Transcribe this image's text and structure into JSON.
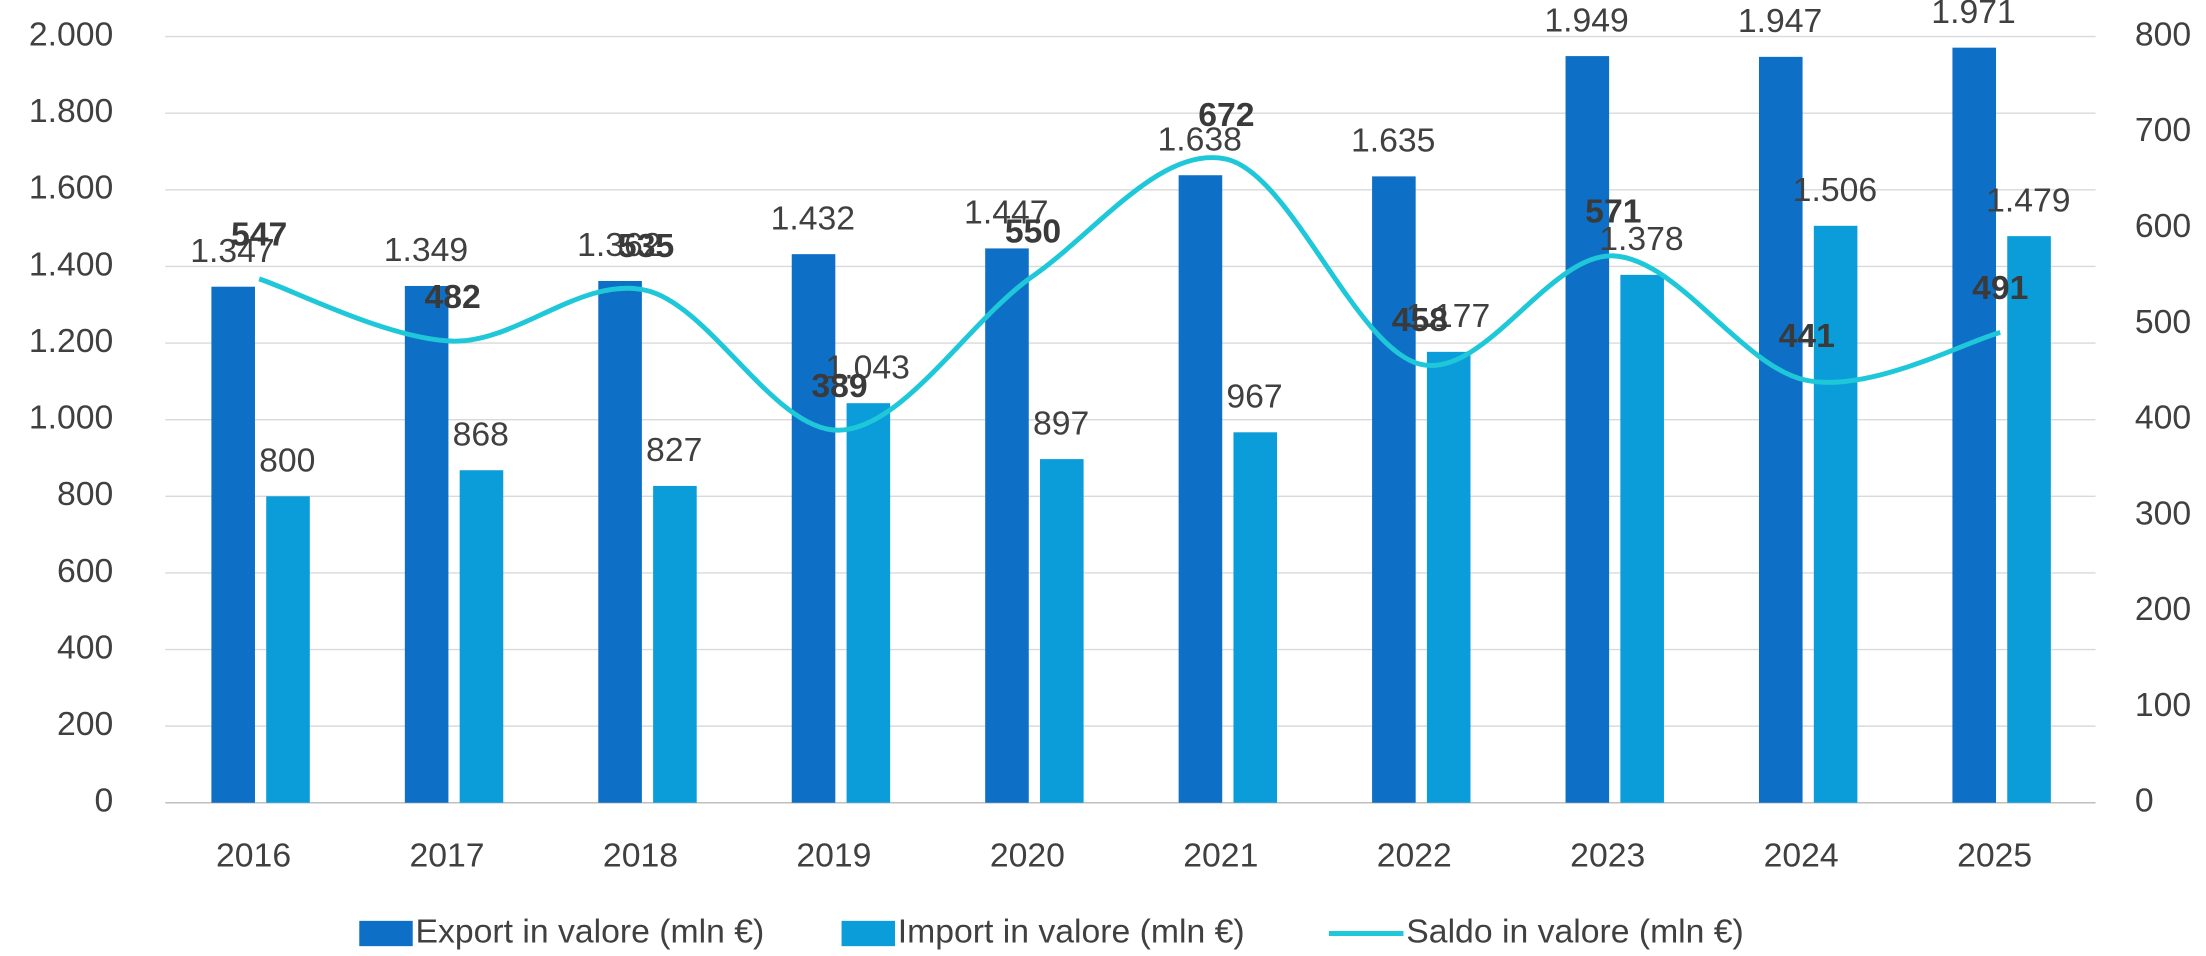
{
  "chart_data": {
    "type": "bar_line",
    "categories": [
      "2016",
      "2017",
      "2018",
      "2019",
      "2020",
      "2021",
      "2022",
      "2023",
      "2024",
      "2025"
    ],
    "series": [
      {
        "name": "Export in valore (mln €)",
        "color": "#0e6fc6",
        "type": "bar",
        "values": [
          1347,
          1349,
          1362,
          1432,
          1447,
          1638,
          1635,
          1949,
          1947,
          1971
        ],
        "value_labels": [
          "1.347",
          "1.349",
          "1.362",
          "1.432",
          "1.447",
          "1.638",
          "1.635",
          "1.949",
          "1.947",
          "1.971"
        ]
      },
      {
        "name": "Import in valore (mln €)",
        "color": "#0b9dd9",
        "type": "bar",
        "values": [
          800,
          868,
          827,
          1043,
          897,
          967,
          1177,
          1378,
          1506,
          1479
        ],
        "value_labels": [
          "800",
          "868",
          "827",
          "1.043",
          "897",
          "967",
          "1.177",
          "1.378",
          "1.506",
          "1.479"
        ]
      },
      {
        "name": "Saldo in valore (mln €)",
        "color": "#1ec8d8",
        "type": "line",
        "axis": "y2",
        "values": [
          547,
          482,
          535,
          389,
          550,
          672,
          458,
          571,
          441,
          491
        ]
      }
    ],
    "ylim": [
      0,
      2000
    ],
    "yticks": [
      0,
      200,
      400,
      600,
      800,
      {
        "value": 1000,
        "label": "1.000"
      },
      {
        "value": 1200,
        "label": "1.200"
      },
      {
        "value": 1400,
        "label": "1.400"
      },
      {
        "value": 1600,
        "label": "1.600"
      },
      {
        "value": 1800,
        "label": "1.800"
      },
      {
        "value": 2000,
        "label": "2.000"
      }
    ],
    "y2lim": [
      0,
      800
    ],
    "y2ticks": [
      0,
      100,
      200,
      300,
      400,
      500,
      600,
      700,
      800
    ],
    "grid": true,
    "legend": "bottom"
  }
}
